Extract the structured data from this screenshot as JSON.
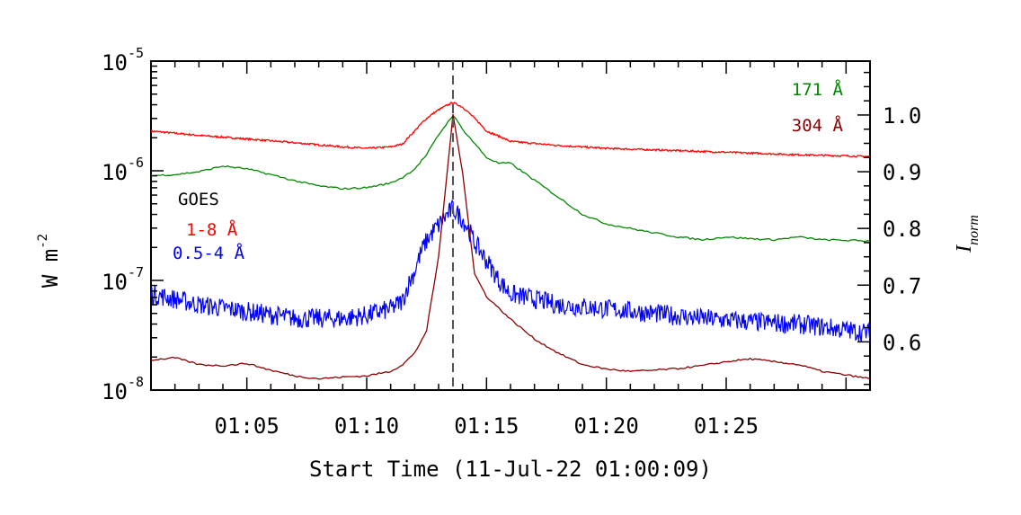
{
  "chart_data": {
    "type": "line",
    "xlabel": "Start Time (11-Jul-22 01:00:09)",
    "ylabel": "W m",
    "ylabel_exponent": "-2",
    "y2label": "I",
    "y2label_subscript": "norm",
    "xlim_minutes": [
      1.0,
      31.0
    ],
    "x_ticks": [
      "01:05",
      "01:10",
      "01:15",
      "01:20",
      "01:25"
    ],
    "x_tick_minutes": [
      5,
      10,
      15,
      20,
      25
    ],
    "ylim": [
      1e-08,
      1e-05
    ],
    "yscale": "log",
    "y_ticks": [
      {
        "value": 1e-05,
        "base": "10",
        "exp": "-5"
      },
      {
        "value": 1e-06,
        "base": "10",
        "exp": "-6"
      },
      {
        "value": 1e-07,
        "base": "10",
        "exp": "-7"
      },
      {
        "value": 1e-08,
        "base": "10",
        "exp": "-8"
      }
    ],
    "y2lim": [
      0.515,
      1.095
    ],
    "y2_ticks": [
      "1.0",
      "0.9",
      "0.8",
      "0.7",
      "0.6"
    ],
    "y2_tick_values": [
      1.0,
      0.9,
      0.8,
      0.7,
      0.6
    ],
    "peak_marker_minute": 13.6,
    "legend_goes_title": "GOES",
    "series": [
      {
        "name": "1-8 Å",
        "axis": "left",
        "color": "#ff0000",
        "x": [
          1.0,
          3,
          5,
          7,
          9,
          10,
          11,
          11.5,
          12,
          12.5,
          13,
          13.6,
          14,
          14.5,
          15,
          16,
          18,
          20,
          22,
          24,
          26,
          28,
          31
        ],
        "y": [
          2.3e-06,
          2.1e-06,
          1.95e-06,
          1.8e-06,
          1.65e-06,
          1.6e-06,
          1.65e-06,
          1.75e-06,
          2.3e-06,
          3e-06,
          3.6e-06,
          4.2e-06,
          3.8e-06,
          3e-06,
          2.3e-06,
          1.85e-06,
          1.7e-06,
          1.6e-06,
          1.55e-06,
          1.5e-06,
          1.45e-06,
          1.4e-06,
          1.35e-06
        ]
      },
      {
        "name": "0.5-4 Å",
        "axis": "left",
        "color": "#0000ff",
        "x": [
          1.0,
          3,
          5,
          7,
          9,
          10,
          11,
          11.5,
          12,
          12.5,
          13,
          13.6,
          14,
          14.5,
          15,
          15.5,
          16,
          18,
          20,
          22,
          24,
          26,
          28,
          31
        ],
        "y": [
          7.5e-08,
          6e-08,
          5.2e-08,
          4.5e-08,
          4.5e-08,
          4.8e-08,
          5.5e-08,
          6.5e-08,
          1.2e-07,
          2.3e-07,
          3.2e-07,
          4.5e-07,
          3.6e-07,
          2.2e-07,
          1.5e-07,
          1e-07,
          7.5e-08,
          6e-08,
          5.5e-08,
          5e-08,
          4.5e-08,
          4.2e-08,
          4e-08,
          3.3e-08
        ]
      },
      {
        "name": "171 Å",
        "axis": "right",
        "color": "#008800",
        "x": [
          1.0,
          2,
          3,
          4,
          5,
          6,
          7,
          8,
          9,
          10,
          11,
          11.5,
          12,
          12.5,
          13,
          13.6,
          14,
          14.5,
          15,
          15.5,
          16,
          17,
          18,
          19,
          20,
          21,
          22,
          23,
          24,
          25,
          26,
          27,
          28,
          29,
          31
        ],
        "y": [
          0.893,
          0.895,
          0.9,
          0.91,
          0.905,
          0.895,
          0.884,
          0.875,
          0.87,
          0.872,
          0.88,
          0.89,
          0.905,
          0.93,
          0.965,
          1.0,
          0.975,
          0.95,
          0.925,
          0.915,
          0.915,
          0.885,
          0.855,
          0.825,
          0.808,
          0.8,
          0.792,
          0.785,
          0.78,
          0.785,
          0.782,
          0.78,
          0.785,
          0.78,
          0.778
        ]
      },
      {
        "name": "304 Å",
        "axis": "right",
        "color": "#8b0000",
        "x": [
          1.0,
          2,
          3,
          4,
          5,
          6,
          7,
          8,
          9,
          10,
          11,
          11.5,
          12,
          12.5,
          13,
          13.6,
          14,
          14.5,
          15,
          15.5,
          16,
          17,
          18,
          19,
          20,
          21,
          22,
          23,
          24,
          25,
          26,
          27,
          28,
          29,
          31
        ],
        "y": [
          0.568,
          0.572,
          0.56,
          0.558,
          0.562,
          0.55,
          0.54,
          0.535,
          0.538,
          0.54,
          0.548,
          0.56,
          0.58,
          0.62,
          0.75,
          1.0,
          0.9,
          0.72,
          0.68,
          0.66,
          0.64,
          0.605,
          0.58,
          0.56,
          0.552,
          0.548,
          0.55,
          0.553,
          0.558,
          0.565,
          0.57,
          0.565,
          0.56,
          0.548,
          0.535
        ]
      }
    ]
  }
}
